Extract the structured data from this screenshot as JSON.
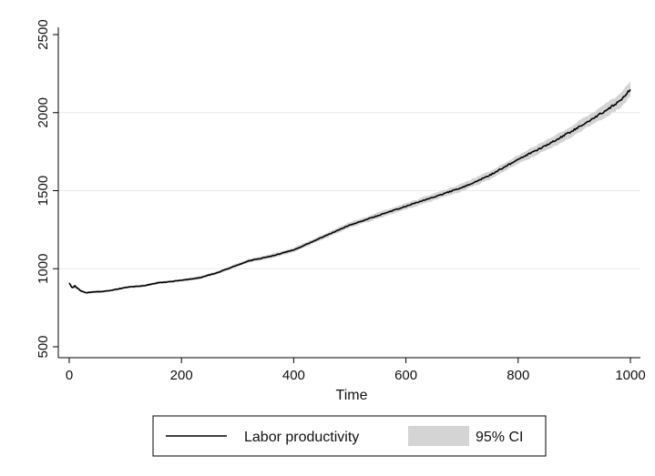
{
  "chart_data": {
    "type": "line",
    "title": "",
    "xlabel": "Time",
    "ylabel": "",
    "xlim": [
      0,
      1000
    ],
    "ylim": [
      500,
      2500
    ],
    "x_ticks": [
      0,
      200,
      400,
      600,
      800,
      1000
    ],
    "y_ticks": [
      500,
      1000,
      1500,
      2000,
      2500
    ],
    "grid": "horizontal",
    "legend_position": "bottom",
    "colors": {
      "line": "#000000",
      "band": "#d4d4d4",
      "grid": "#eaeaea"
    },
    "series": [
      {
        "name": "Labor productivity",
        "x": [
          0,
          5,
          10,
          20,
          30,
          40,
          60,
          80,
          100,
          130,
          160,
          200,
          230,
          260,
          290,
          320,
          360,
          400,
          450,
          500,
          550,
          600,
          650,
          700,
          750,
          800,
          850,
          900,
          950,
          980,
          1000
        ],
        "y": [
          910,
          875,
          890,
          860,
          845,
          850,
          855,
          865,
          880,
          890,
          910,
          925,
          940,
          970,
          1010,
          1050,
          1080,
          1120,
          1200,
          1280,
          1340,
          1400,
          1460,
          1520,
          1600,
          1700,
          1790,
          1890,
          2000,
          2070,
          2150
        ]
      }
    ],
    "band": {
      "name": "95% CI",
      "x": [
        0,
        5,
        10,
        20,
        30,
        40,
        60,
        80,
        100,
        130,
        160,
        200,
        230,
        260,
        290,
        320,
        360,
        400,
        450,
        500,
        550,
        600,
        650,
        700,
        750,
        800,
        850,
        900,
        950,
        980,
        1000
      ],
      "lower": [
        900,
        865,
        880,
        852,
        838,
        843,
        848,
        858,
        872,
        882,
        902,
        917,
        930,
        960,
        999,
        1038,
        1067,
        1106,
        1185,
        1263,
        1321,
        1380,
        1438,
        1496,
        1574,
        1671,
        1758,
        1855,
        1960,
        2025,
        2105
      ],
      "upper": [
        920,
        885,
        900,
        868,
        852,
        857,
        862,
        872,
        888,
        898,
        918,
        933,
        950,
        980,
        1021,
        1062,
        1093,
        1134,
        1215,
        1297,
        1359,
        1420,
        1482,
        1544,
        1626,
        1729,
        1822,
        1925,
        2040,
        2115,
        2195
      ]
    }
  }
}
